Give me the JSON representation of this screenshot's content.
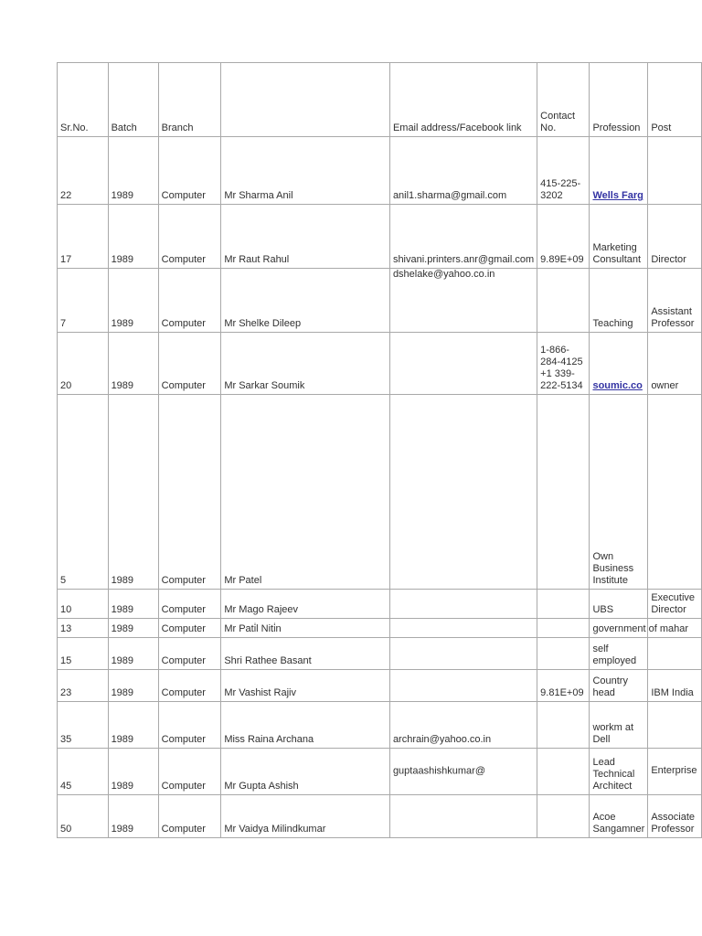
{
  "table": {
    "columns": [
      {
        "label": "Sr.No."
      },
      {
        "label": "Batch"
      },
      {
        "label": "Branch"
      },
      {
        "label": ""
      },
      {
        "label": "Email address/Facebook link"
      },
      {
        "label": "Contact No."
      },
      {
        "label": "Profession"
      },
      {
        "label": "Post"
      }
    ],
    "rows": [
      {
        "sr_no": "22",
        "batch": "1989",
        "branch": "Computer",
        "name": "Mr Sharma Anil",
        "email": "anil1.sharma@gmail.com",
        "contact": "415-225-3202",
        "profession": "Wells Farg",
        "profession_is_link": true,
        "post": ""
      },
      {
        "sr_no": "17",
        "batch": "1989",
        "branch": "Computer",
        "name": "Mr Raut Rahul",
        "email": "shivani.printers.anr@gmail.com",
        "contact": "9.89E+09",
        "profession": "Marketing Consultant",
        "post": "Director"
      },
      {
        "sr_no": "7",
        "batch": "1989",
        "branch": "Computer",
        "name": "Mr Shelke Dileep",
        "email": "dshelake@yahoo.co.in",
        "contact": "",
        "profession": "Teaching",
        "post": "Assistant Professor"
      },
      {
        "sr_no": "20",
        "batch": "1989",
        "branch": "Computer",
        "name": "Mr Sarkar Soumik",
        "email": "",
        "contact": "1-866-284-4125 +1 339-222-5134",
        "profession": "soumic.co",
        "profession_is_link": true,
        "post": "owner"
      },
      {
        "sr_no": "5",
        "batch": "1989",
        "branch": "Computer",
        "name": "Mr Patel",
        "email": "",
        "contact": "",
        "profession": "Own Business Institute",
        "post": ""
      },
      {
        "sr_no": "10",
        "batch": "1989",
        "branch": "Computer",
        "name": "Mr Mago Rajeev",
        "email": "",
        "contact": "",
        "profession": "UBS",
        "post": "Executive Director"
      },
      {
        "sr_no": "13",
        "batch": "1989",
        "branch": "Computer",
        "name": "Mr Pati̇l Niti̇n",
        "email": "",
        "contact": "",
        "profession": "government of mahar",
        "post": ""
      },
      {
        "sr_no": "15",
        "batch": "1989",
        "branch": "Computer",
        "name": "Shri Rathee Basant",
        "email": "",
        "contact": "",
        "profession": "self employed",
        "post": ""
      },
      {
        "sr_no": "23",
        "batch": "1989",
        "branch": "Computer",
        "name": "Mr Vashist Rajiv",
        "email": "",
        "contact": "9.81E+09",
        "profession": "Country head",
        "post": "IBM India"
      },
      {
        "sr_no": "35",
        "batch": "1989",
        "branch": "Computer",
        "name": "Miss Raina Archana",
        "email": "archrain@yahoo.co.in",
        "contact": "",
        "profession": "workm at Dell",
        "post": ""
      },
      {
        "sr_no": "45",
        "batch": "1989",
        "branch": "Computer",
        "name": "Mr Gupta Ashish",
        "email": "guptaashishkumar@",
        "contact": "",
        "profession": "Lead Technical Architect",
        "post": "Enterprise"
      },
      {
        "sr_no": "50",
        "batch": "1989",
        "branch": "Computer",
        "name": "Mr Vaidya Milindkumar",
        "email": "",
        "contact": "",
        "profession": "Acoe Sangamner",
        "post": "Associate Professor"
      }
    ]
  },
  "colors": {
    "link_blue": "#3333a3",
    "grid_line": "#a9a9a9",
    "body_text": "#303030",
    "name_text": "#000000",
    "page_bg": "#ffffff"
  }
}
